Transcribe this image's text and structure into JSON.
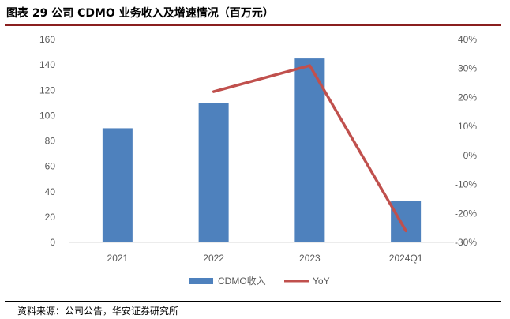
{
  "figure": {
    "title": "图表 29 公司 CDMO 业务收入及增速情况（百万元）",
    "source": "资料来源：公司公告，华安证券研究所"
  },
  "colors": {
    "bar": "#4e81bd",
    "line": "#c0504d",
    "axis_text": "#595959",
    "axis_line": "#d9d9d9",
    "title_rule": "#8a1f1f"
  },
  "chart_data": {
    "type": "bar",
    "categories": [
      "2021",
      "2022",
      "2023",
      "2024Q1"
    ],
    "series": [
      {
        "name": "CDMO收入",
        "type": "bar",
        "axis": "left",
        "values": [
          90,
          110,
          145,
          33
        ]
      },
      {
        "name": "YoY",
        "type": "line",
        "axis": "right",
        "values": [
          null,
          22,
          31,
          -26
        ]
      }
    ],
    "ylim_left": [
      0,
      160
    ],
    "yticks_left": [
      "0",
      "20",
      "40",
      "60",
      "80",
      "100",
      "120",
      "140",
      "160"
    ],
    "ylim_right": [
      -30,
      40
    ],
    "yticks_right": [
      "-30%",
      "-20%",
      "-10%",
      "0%",
      "10%",
      "20%",
      "30%",
      "40%"
    ],
    "grid": false,
    "legend": "bottom"
  }
}
